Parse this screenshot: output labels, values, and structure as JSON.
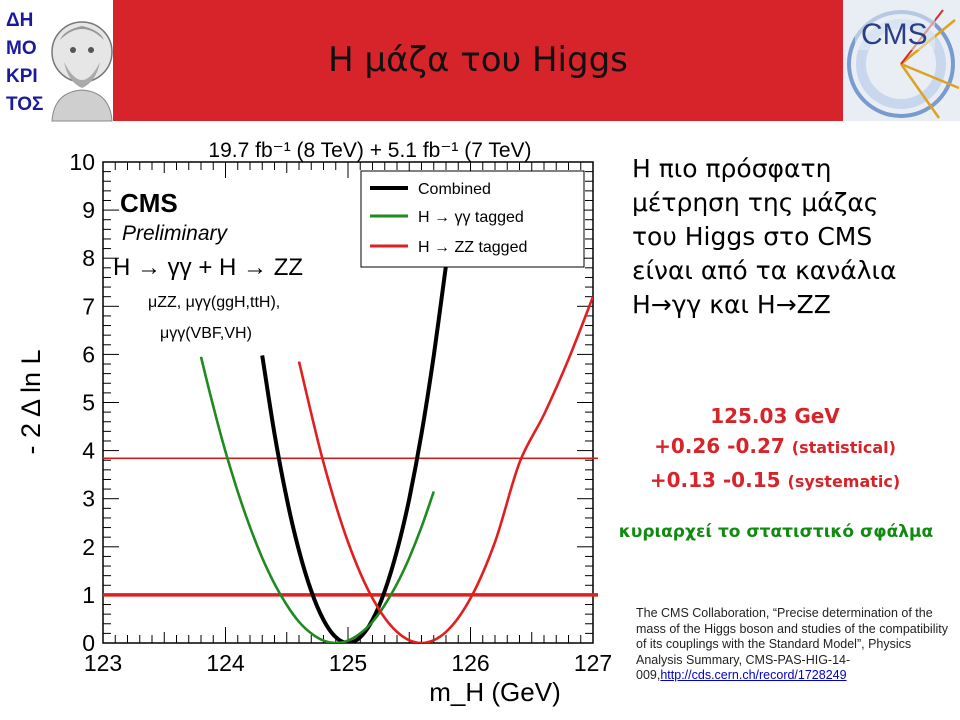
{
  "header": {
    "title": "Η μάζα του Higgs",
    "logo_left_text": "ΔΗΜΟΚΡΙΤΟΣ",
    "logo_right_text": "CMS"
  },
  "notes": {
    "lines": [
      "Η πιο πρόσφατη",
      "μέτρηση της μάζας",
      "του Higgs στο CMS",
      "είναι από τα κανάλια",
      "Η→γγ και Η→ΖΖ"
    ]
  },
  "result": {
    "value": "125.03 GeV",
    "stat_values": "+0.26 -0.27",
    "stat_label": "(statistical)",
    "syst_values": "+0.13 -0.15",
    "syst_label": "(systematic)",
    "note": "κυριαρχεί το στατιστικό σφάλμα"
  },
  "citation": {
    "text": "The CMS Collaboration, “Precise determination of the mass of the Higgs boson and studies of the compatibility of its couplings with the Standard Model”, Physics Analysis Summary, CMS-PAS-HIG-14-009,",
    "link": "http://cds.cern.ch/record/1728249"
  },
  "colors": {
    "header_bg": "#d7232a",
    "combined": "#000000",
    "gamma_gamma": "#1f8a1f",
    "zz": "#e02020",
    "result_text": "#d7232a",
    "note_text": "#118a11"
  },
  "chart_data": {
    "type": "line",
    "title": "19.7 fb⁻¹ (8 TeV) + 5.1 fb⁻¹ (7 TeV)",
    "xlabel": "m_H (GeV)",
    "ylabel": "- 2 Δ ln L",
    "xlim": [
      123,
      127
    ],
    "ylim": [
      0,
      10
    ],
    "xticks": [
      123,
      124,
      125,
      126,
      127
    ],
    "yticks": [
      0,
      1,
      2,
      3,
      4,
      5,
      6,
      7,
      8,
      9,
      10
    ],
    "grid": false,
    "legend_position": "top-right",
    "annotations": {
      "experiment": "CMS",
      "status": "Preliminary",
      "channels": "H → γγ + H → ZZ",
      "params_line1": "μZZ, μγγ(ggH,ttH),",
      "params_line2": "μγγ(VBF,VH)"
    },
    "reference_lines": [
      {
        "y": 1,
        "color": "#e02020"
      },
      {
        "y": 3.84,
        "color": "#c82020"
      }
    ],
    "series": [
      {
        "name": "Combined",
        "color": "#000000",
        "x": [
          124.3,
          124.4,
          124.5,
          124.6,
          124.7,
          124.8,
          124.9,
          125.0,
          125.1,
          125.2,
          125.3,
          125.4,
          125.5,
          125.6,
          125.7,
          125.8
        ],
        "y": [
          5.98,
          4.35,
          3.0,
          1.92,
          1.08,
          0.48,
          0.12,
          0.0,
          0.12,
          0.48,
          1.08,
          1.92,
          3.0,
          4.35,
          5.98,
          7.85
        ]
      },
      {
        "name": "H → γγ tagged",
        "color": "#1f8a1f",
        "x": [
          123.8,
          123.9,
          124.0,
          124.1,
          124.2,
          124.3,
          124.4,
          124.5,
          124.6,
          124.7,
          124.8,
          124.9,
          125.0,
          125.1,
          125.2,
          125.3,
          125.4,
          125.5,
          125.6,
          125.7
        ],
        "y": [
          5.95,
          4.92,
          3.98,
          3.15,
          2.41,
          1.77,
          1.23,
          0.79,
          0.44,
          0.2,
          0.05,
          0.0,
          0.05,
          0.2,
          0.44,
          0.79,
          1.23,
          1.77,
          2.41,
          3.15
        ]
      },
      {
        "name": "H → ZZ tagged",
        "color": "#e02020",
        "x": [
          124.6,
          124.8,
          125.0,
          125.2,
          125.4,
          125.6,
          125.8,
          126.0,
          126.2,
          126.4,
          126.6,
          126.8,
          127.0
        ],
        "y": [
          5.85,
          3.75,
          2.1,
          0.93,
          0.23,
          0.0,
          0.23,
          0.93,
          2.1,
          3.75,
          4.75,
          5.9,
          7.2
        ]
      }
    ]
  }
}
